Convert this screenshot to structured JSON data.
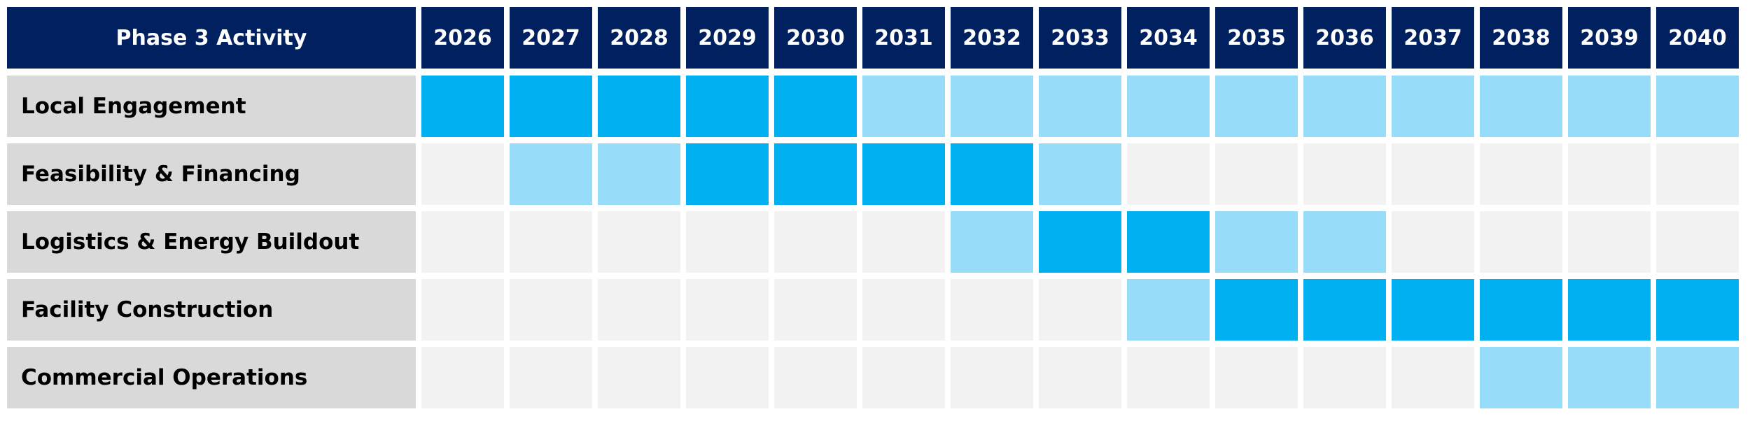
{
  "header": {
    "title": "Phase 3 Activity",
    "years": [
      2026,
      2027,
      2028,
      2029,
      2030,
      2031,
      2032,
      2033,
      2034,
      2035,
      2036,
      2037,
      2038,
      2039,
      2040
    ]
  },
  "rows": [
    {
      "label": "Local Engagement",
      "colors": [
        "#00b0f0",
        "#00b0f0",
        "#00b0f0",
        "#00b0f0",
        "#00b0f0",
        "#97dcf8",
        "#97dcf8",
        "#97dcf8",
        "#97dcf8",
        "#97dcf8",
        "#97dcf8",
        "#97dcf8",
        "#97dcf8",
        "#97dcf8",
        "#97dcf8"
      ]
    },
    {
      "label": "Feasibility & Financing",
      "colors": [
        "#f2f2f2",
        "#97dcf8",
        "#97dcf8",
        "#00b0f0",
        "#00b0f0",
        "#00b0f0",
        "#00b0f0",
        "#97dcf8",
        "#f2f2f2",
        "#f2f2f2",
        "#f2f2f2",
        "#f2f2f2",
        "#f2f2f2",
        "#f2f2f2",
        "#f2f2f2"
      ]
    },
    {
      "label": "Logistics & Energy Buildout",
      "colors": [
        "#f2f2f2",
        "#f2f2f2",
        "#f2f2f2",
        "#f2f2f2",
        "#f2f2f2",
        "#f2f2f2",
        "#97dcf8",
        "#00b0f0",
        "#00b0f0",
        "#97dcf8",
        "#97dcf8",
        "#f2f2f2",
        "#f2f2f2",
        "#f2f2f2",
        "#f2f2f2"
      ]
    },
    {
      "label": "Facility Construction",
      "colors": [
        "#f2f2f2",
        "#f2f2f2",
        "#f2f2f2",
        "#f2f2f2",
        "#f2f2f2",
        "#f2f2f2",
        "#f2f2f2",
        "#f2f2f2",
        "#97dcf8",
        "#00b0f0",
        "#00b0f0",
        "#00b0f0",
        "#00b0f0",
        "#00b0f0",
        "#00b0f0"
      ]
    },
    {
      "label": "Commercial Operations",
      "colors": [
        "#f2f2f2",
        "#f2f2f2",
        "#f2f2f2",
        "#f2f2f2",
        "#f2f2f2",
        "#f2f2f2",
        "#f2f2f2",
        "#f2f2f2",
        "#f2f2f2",
        "#f2f2f2",
        "#f2f2f2",
        "#f2f2f2",
        "#97dcf8",
        "#97dcf8",
        "#97dcf8"
      ]
    }
  ]
}
